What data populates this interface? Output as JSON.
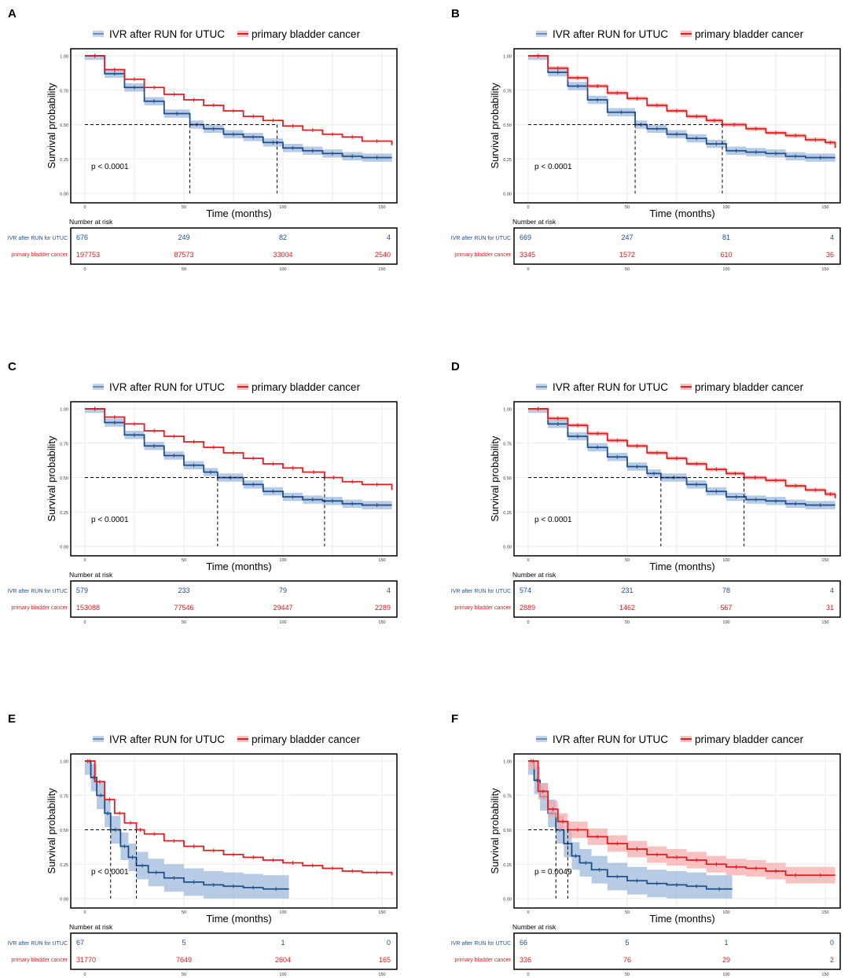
{
  "figure": {
    "colors": {
      "ivr": "#1f4e8c",
      "ivr_band": "#9fb9db",
      "bladder": "#e41a1c",
      "bladder_band": "#f6a8a8",
      "grid": "#e6e6e6",
      "frame": "#000000"
    },
    "legend": {
      "ivr_label": "IVR after RUN for UTUC",
      "bladder_label": "primary bladder cancer"
    },
    "common": {
      "ylabel": "Survival probability",
      "xlabel": "Time (months)",
      "risk_title": "Number at risk",
      "yticks": [
        "0.00",
        "0.25",
        "0.50",
        "0.75",
        "1.00"
      ],
      "xticks": [
        "0",
        "50",
        "100",
        "150"
      ],
      "risk_row_labels": [
        "IVR after RUN for UTUC",
        "primary bladder cancer"
      ]
    }
  },
  "chart_data": [
    {
      "type": "line",
      "panel": "A",
      "title": "A",
      "xlabel": "Time (months)",
      "ylabel": "Survival probability",
      "xlim": [
        0,
        155
      ],
      "ylim": [
        0,
        1
      ],
      "pvalue": "p < 0.0001",
      "median": {
        "ivr": 53,
        "bladder": 97
      },
      "series": [
        {
          "name": "IVR after RUN for UTUC",
          "x": [
            0,
            10,
            20,
            30,
            40,
            53,
            60,
            70,
            80,
            90,
            100,
            110,
            120,
            130,
            140,
            155
          ],
          "y": [
            1.0,
            0.87,
            0.77,
            0.67,
            0.58,
            0.5,
            0.47,
            0.43,
            0.41,
            0.37,
            0.33,
            0.31,
            0.29,
            0.27,
            0.26,
            0.26
          ],
          "band": 0.03
        },
        {
          "name": "primary bladder cancer",
          "x": [
            0,
            10,
            20,
            30,
            40,
            50,
            60,
            70,
            80,
            90,
            100,
            110,
            120,
            130,
            140,
            155
          ],
          "y": [
            1.0,
            0.9,
            0.83,
            0.77,
            0.72,
            0.68,
            0.64,
            0.6,
            0.56,
            0.53,
            0.49,
            0.46,
            0.43,
            0.41,
            0.38,
            0.35
          ],
          "band": 0.003
        }
      ],
      "risk_table": {
        "x": [
          0,
          50,
          100,
          150
        ],
        "ivr": [
          "676",
          "249",
          "82",
          "4"
        ],
        "bladder": [
          "197753",
          "87573",
          "33004",
          "2540"
        ]
      }
    },
    {
      "type": "line",
      "panel": "B",
      "title": "B",
      "xlabel": "Time (months)",
      "ylabel": "Survival probability",
      "xlim": [
        0,
        155
      ],
      "ylim": [
        0,
        1
      ],
      "pvalue": "p < 0.0001",
      "median": {
        "ivr": 54,
        "bladder": 98
      },
      "series": [
        {
          "name": "IVR after RUN for UTUC",
          "x": [
            0,
            10,
            20,
            30,
            40,
            54,
            60,
            70,
            80,
            90,
            100,
            110,
            120,
            130,
            140,
            155
          ],
          "y": [
            1.0,
            0.88,
            0.78,
            0.68,
            0.59,
            0.5,
            0.47,
            0.43,
            0.4,
            0.36,
            0.31,
            0.3,
            0.29,
            0.27,
            0.26,
            0.26
          ],
          "band": 0.03
        },
        {
          "name": "primary bladder cancer",
          "x": [
            0,
            10,
            20,
            30,
            40,
            50,
            60,
            70,
            80,
            90,
            98,
            110,
            120,
            130,
            140,
            150,
            155
          ],
          "y": [
            1.0,
            0.91,
            0.84,
            0.78,
            0.73,
            0.69,
            0.64,
            0.6,
            0.56,
            0.53,
            0.5,
            0.47,
            0.44,
            0.42,
            0.39,
            0.37,
            0.33
          ],
          "band": 0.015
        }
      ],
      "risk_table": {
        "x": [
          0,
          50,
          100,
          150
        ],
        "ivr": [
          "669",
          "247",
          "81",
          "4"
        ],
        "bladder": [
          "3345",
          "1572",
          "610",
          "36"
        ]
      }
    },
    {
      "type": "line",
      "panel": "C",
      "title": "C",
      "xlabel": "Time (months)",
      "ylabel": "Survival probability",
      "xlim": [
        0,
        155
      ],
      "ylim": [
        0,
        1
      ],
      "pvalue": "p < 0.0001",
      "median": {
        "ivr": 67,
        "bladder": 121
      },
      "series": [
        {
          "name": "IVR after RUN for UTUC",
          "x": [
            0,
            10,
            20,
            30,
            40,
            50,
            60,
            67,
            80,
            90,
            100,
            110,
            120,
            130,
            140,
            155
          ],
          "y": [
            1.0,
            0.9,
            0.81,
            0.73,
            0.66,
            0.59,
            0.54,
            0.5,
            0.45,
            0.4,
            0.36,
            0.34,
            0.33,
            0.31,
            0.3,
            0.3
          ],
          "band": 0.03
        },
        {
          "name": "primary bladder cancer",
          "x": [
            0,
            10,
            20,
            30,
            40,
            50,
            60,
            70,
            80,
            90,
            100,
            110,
            121,
            130,
            140,
            155
          ],
          "y": [
            1.0,
            0.94,
            0.89,
            0.84,
            0.8,
            0.76,
            0.72,
            0.68,
            0.64,
            0.6,
            0.57,
            0.54,
            0.5,
            0.47,
            0.45,
            0.41
          ],
          "band": 0.003
        }
      ],
      "risk_table": {
        "x": [
          0,
          50,
          100,
          150
        ],
        "ivr": [
          "579",
          "233",
          "79",
          "4"
        ],
        "bladder": [
          "153088",
          "77546",
          "29447",
          "2289"
        ]
      }
    },
    {
      "type": "line",
      "panel": "D",
      "title": "D",
      "xlabel": "Time (months)",
      "ylabel": "Survival probability",
      "xlim": [
        0,
        155
      ],
      "ylim": [
        0,
        1
      ],
      "pvalue": "p < 0.0001",
      "median": {
        "ivr": 67,
        "bladder": 109
      },
      "series": [
        {
          "name": "IVR after RUN for UTUC",
          "x": [
            0,
            10,
            20,
            30,
            40,
            50,
            60,
            67,
            80,
            90,
            100,
            110,
            120,
            130,
            140,
            155
          ],
          "y": [
            1.0,
            0.89,
            0.8,
            0.72,
            0.65,
            0.58,
            0.53,
            0.5,
            0.45,
            0.4,
            0.36,
            0.34,
            0.33,
            0.31,
            0.3,
            0.3
          ],
          "band": 0.03
        },
        {
          "name": "primary bladder cancer",
          "x": [
            0,
            10,
            20,
            30,
            40,
            50,
            60,
            70,
            80,
            90,
            100,
            109,
            120,
            130,
            140,
            150,
            155
          ],
          "y": [
            1.0,
            0.93,
            0.88,
            0.82,
            0.77,
            0.73,
            0.68,
            0.64,
            0.6,
            0.56,
            0.53,
            0.5,
            0.48,
            0.44,
            0.41,
            0.38,
            0.35
          ],
          "band": 0.015
        }
      ],
      "risk_table": {
        "x": [
          0,
          50,
          100,
          150
        ],
        "ivr": [
          "574",
          "231",
          "78",
          "4"
        ],
        "bladder": [
          "2889",
          "1462",
          "567",
          "31"
        ]
      }
    },
    {
      "type": "line",
      "panel": "E",
      "title": "E",
      "xlabel": "Time (months)",
      "ylabel": "Survival probability",
      "xlim": [
        0,
        155
      ],
      "ylim": [
        0,
        1
      ],
      "pvalue": "p < 0.0001",
      "median": {
        "ivr": 13,
        "bladder": 26
      },
      "series": [
        {
          "name": "IVR after RUN for UTUC",
          "x": [
            0,
            3,
            6,
            10,
            13,
            18,
            22,
            26,
            32,
            40,
            50,
            60,
            70,
            80,
            90,
            103
          ],
          "y": [
            1.0,
            0.88,
            0.75,
            0.62,
            0.5,
            0.38,
            0.3,
            0.24,
            0.19,
            0.15,
            0.12,
            0.1,
            0.09,
            0.08,
            0.07,
            0.07
          ],
          "band": 0.1
        },
        {
          "name": "primary bladder cancer",
          "x": [
            0,
            5,
            10,
            15,
            20,
            26,
            30,
            40,
            50,
            60,
            70,
            80,
            90,
            100,
            110,
            120,
            130,
            140,
            155
          ],
          "y": [
            1.0,
            0.85,
            0.72,
            0.62,
            0.55,
            0.5,
            0.47,
            0.42,
            0.38,
            0.35,
            0.32,
            0.3,
            0.28,
            0.26,
            0.24,
            0.22,
            0.2,
            0.19,
            0.17
          ],
          "band": 0.004
        }
      ],
      "risk_table": {
        "x": [
          0,
          50,
          100,
          150
        ],
        "ivr": [
          "67",
          "5",
          "1",
          "0"
        ],
        "bladder": [
          "31770",
          "7649",
          "2604",
          "165"
        ]
      }
    },
    {
      "type": "line",
      "panel": "F",
      "title": "F",
      "xlabel": "Time (months)",
      "ylabel": "Survival probability",
      "xlim": [
        0,
        155
      ],
      "ylim": [
        0,
        1
      ],
      "pvalue": "p = 0.0049",
      "median": {
        "ivr": 14,
        "bladder": 20
      },
      "series": [
        {
          "name": "IVR after RUN for UTUC",
          "x": [
            0,
            3,
            6,
            10,
            14,
            18,
            22,
            26,
            32,
            40,
            50,
            60,
            70,
            80,
            90,
            103
          ],
          "y": [
            1.0,
            0.86,
            0.74,
            0.62,
            0.5,
            0.4,
            0.31,
            0.26,
            0.21,
            0.16,
            0.13,
            0.11,
            0.1,
            0.09,
            0.07,
            0.07
          ],
          "band": 0.1
        },
        {
          "name": "primary bladder cancer",
          "x": [
            0,
            5,
            10,
            15,
            20,
            30,
            40,
            50,
            60,
            70,
            80,
            90,
            100,
            110,
            120,
            130,
            140,
            155
          ],
          "y": [
            1.0,
            0.78,
            0.65,
            0.56,
            0.5,
            0.45,
            0.4,
            0.36,
            0.32,
            0.3,
            0.28,
            0.25,
            0.23,
            0.22,
            0.2,
            0.17,
            0.17,
            0.17
          ],
          "band": 0.06
        }
      ],
      "risk_table": {
        "x": [
          0,
          50,
          100,
          150
        ],
        "ivr": [
          "66",
          "5",
          "1",
          "0"
        ],
        "bladder": [
          "336",
          "76",
          "29",
          "2"
        ]
      }
    }
  ]
}
